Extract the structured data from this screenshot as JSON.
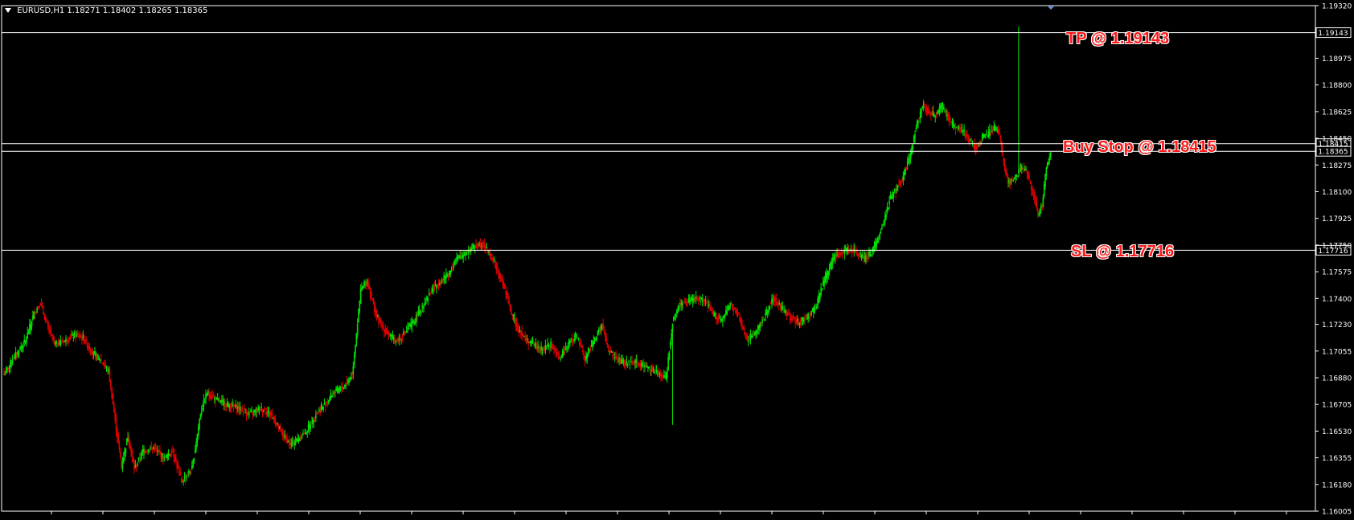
{
  "symbol_line": {
    "symbol": "EURUSD,H1",
    "ohlc": "1.18271 1.18402 1.18265 1.18365"
  },
  "annotations": {
    "tp": "TP @ 1.19143",
    "buy_stop": "Buy Stop @ 1.18415",
    "sl": "SL @ 1.17716"
  },
  "colors": {
    "background": "#000000",
    "bull": "#00e000",
    "bear": "#e00000",
    "grid_axis": "#ffffff",
    "annotation": "#ff1a1a"
  },
  "chart_data": {
    "type": "candlestick",
    "symbol": "EURUSD",
    "timeframe": "H1",
    "ylim": [
      1.16005,
      1.1932
    ],
    "y_ticks": [
      "1.19320",
      "1.18975",
      "1.18800",
      "1.18625",
      "1.18450",
      "1.18275",
      "1.18100",
      "1.17925",
      "1.17750",
      "1.17575",
      "1.17400",
      "1.17230",
      "1.17055",
      "1.16880",
      "1.16705",
      "1.16530",
      "1.16355",
      "1.16180",
      "1.16005"
    ],
    "price_lines": [
      {
        "name": "TP",
        "value": 1.19143,
        "label": "1.19143"
      },
      {
        "name": "Buy Stop",
        "value": 1.18415,
        "label": "1.18415"
      },
      {
        "name": "Current",
        "value": 1.18365,
        "label": "1.18365"
      },
      {
        "name": "SL",
        "value": 1.17716,
        "label": "1.17716"
      }
    ],
    "close_anchors": [
      [
        0,
        1.169
      ],
      [
        8,
        1.17
      ],
      [
        20,
        1.1712
      ],
      [
        28,
        1.173
      ],
      [
        34,
        1.1737
      ],
      [
        40,
        1.1723
      ],
      [
        48,
        1.171
      ],
      [
        56,
        1.1712
      ],
      [
        66,
        1.1716
      ],
      [
        74,
        1.1714
      ],
      [
        82,
        1.1705
      ],
      [
        90,
        1.17
      ],
      [
        98,
        1.1692
      ],
      [
        104,
        1.166
      ],
      [
        110,
        1.163
      ],
      [
        116,
        1.165
      ],
      [
        122,
        1.1628
      ],
      [
        130,
        1.164
      ],
      [
        140,
        1.1642
      ],
      [
        150,
        1.1635
      ],
      [
        158,
        1.164
      ],
      [
        166,
        1.162
      ],
      [
        176,
        1.1628
      ],
      [
        184,
        1.1665
      ],
      [
        190,
        1.1678
      ],
      [
        200,
        1.1673
      ],
      [
        210,
        1.167
      ],
      [
        220,
        1.1668
      ],
      [
        230,
        1.1664
      ],
      [
        240,
        1.1668
      ],
      [
        250,
        1.1664
      ],
      [
        260,
        1.1652
      ],
      [
        268,
        1.1644
      ],
      [
        276,
        1.1648
      ],
      [
        284,
        1.1654
      ],
      [
        292,
        1.1664
      ],
      [
        300,
        1.167
      ],
      [
        308,
        1.1678
      ],
      [
        318,
        1.1682
      ],
      [
        326,
        1.169
      ],
      [
        334,
        1.1745
      ],
      [
        340,
        1.1752
      ],
      [
        346,
        1.1735
      ],
      [
        352,
        1.1723
      ],
      [
        360,
        1.1716
      ],
      [
        368,
        1.1712
      ],
      [
        376,
        1.1718
      ],
      [
        384,
        1.1725
      ],
      [
        392,
        1.1735
      ],
      [
        400,
        1.1745
      ],
      [
        410,
        1.1752
      ],
      [
        418,
        1.1758
      ],
      [
        424,
        1.1766
      ],
      [
        432,
        1.177
      ],
      [
        440,
        1.1774
      ],
      [
        448,
        1.1776
      ],
      [
        456,
        1.1768
      ],
      [
        462,
        1.1758
      ],
      [
        468,
        1.1748
      ],
      [
        474,
        1.1733
      ],
      [
        480,
        1.1722
      ],
      [
        488,
        1.1713
      ],
      [
        496,
        1.171
      ],
      [
        504,
        1.1706
      ],
      [
        512,
        1.171
      ],
      [
        520,
        1.17
      ],
      [
        528,
        1.171
      ],
      [
        536,
        1.1716
      ],
      [
        544,
        1.17
      ],
      [
        552,
        1.1712
      ],
      [
        560,
        1.1722
      ],
      [
        566,
        1.1706
      ],
      [
        574,
        1.17
      ],
      [
        582,
        1.1697
      ],
      [
        590,
        1.1699
      ],
      [
        598,
        1.1696
      ],
      [
        606,
        1.1694
      ],
      [
        614,
        1.169
      ],
      [
        620,
        1.1688
      ],
      [
        626,
        1.1725
      ],
      [
        632,
        1.1736
      ],
      [
        640,
        1.1738
      ],
      [
        648,
        1.174
      ],
      [
        656,
        1.1738
      ],
      [
        664,
        1.173
      ],
      [
        672,
        1.1725
      ],
      [
        680,
        1.1736
      ],
      [
        688,
        1.1728
      ],
      [
        696,
        1.1713
      ],
      [
        704,
        1.1718
      ],
      [
        712,
        1.1728
      ],
      [
        720,
        1.174
      ],
      [
        728,
        1.1734
      ],
      [
        736,
        1.1728
      ],
      [
        744,
        1.1724
      ],
      [
        752,
        1.1728
      ],
      [
        760,
        1.1734
      ],
      [
        768,
        1.1752
      ],
      [
        776,
        1.1766
      ],
      [
        784,
        1.177
      ],
      [
        790,
        1.1772
      ],
      [
        798,
        1.177
      ],
      [
        806,
        1.1766
      ],
      [
        812,
        1.177
      ],
      [
        818,
        1.1778
      ],
      [
        824,
        1.1792
      ],
      [
        830,
        1.1806
      ],
      [
        836,
        1.1812
      ],
      [
        842,
        1.182
      ],
      [
        848,
        1.1832
      ],
      [
        854,
        1.1853
      ],
      [
        860,
        1.1866
      ],
      [
        866,
        1.1862
      ],
      [
        872,
        1.186
      ],
      [
        878,
        1.1866
      ],
      [
        886,
        1.1856
      ],
      [
        892,
        1.1852
      ],
      [
        898,
        1.185
      ],
      [
        904,
        1.1844
      ],
      [
        910,
        1.1838
      ],
      [
        916,
        1.1846
      ],
      [
        922,
        1.1848
      ],
      [
        928,
        1.1852
      ],
      [
        932,
        1.1848
      ],
      [
        936,
        1.1828
      ],
      [
        940,
        1.1816
      ],
      [
        946,
        1.1818
      ],
      [
        952,
        1.1826
      ],
      [
        958,
        1.1822
      ],
      [
        964,
        1.1808
      ],
      [
        968,
        1.1796
      ],
      [
        972,
        1.18
      ],
      [
        976,
        1.1826
      ],
      [
        980,
        1.1836
      ]
    ]
  }
}
